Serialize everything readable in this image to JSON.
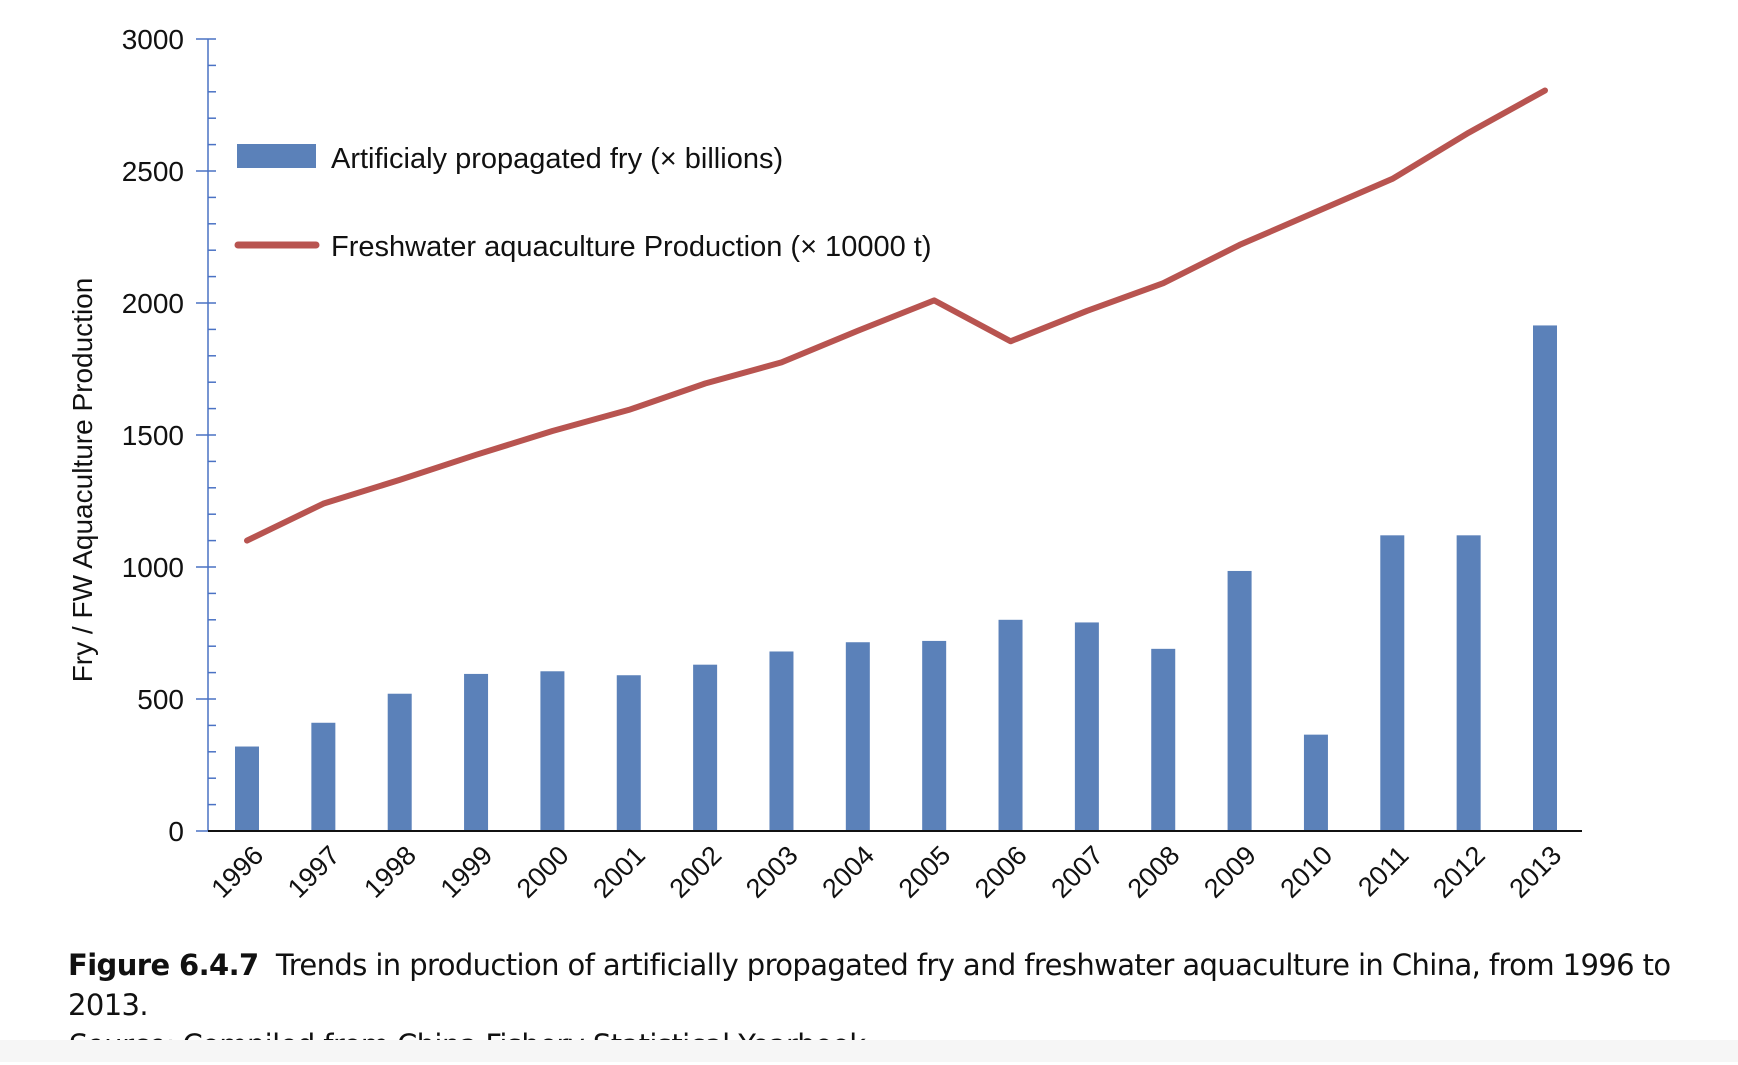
{
  "colors": {
    "bar": "#5b81b9",
    "line": "#b85450",
    "axis": "#4a72c4"
  },
  "chart_data": {
    "type": "bar+line",
    "ylabel": "Fry / FW Aquaculture Production",
    "ylim": [
      0,
      3000
    ],
    "yticks": [
      "0",
      "500",
      "1000",
      "1500",
      "2000",
      "2500",
      "3000"
    ],
    "categories": [
      "1996",
      "1997",
      "1998",
      "1999",
      "2000",
      "2001",
      "2002",
      "2003",
      "2004",
      "2005",
      "2006",
      "2007",
      "2008",
      "2009",
      "2010",
      "2011",
      "2012",
      "2013"
    ],
    "series": [
      {
        "name": "Artificialy propagated fry (× billions)",
        "type": "bar",
        "values": [
          320,
          410,
          520,
          595,
          605,
          590,
          630,
          680,
          715,
          720,
          800,
          790,
          690,
          985,
          365,
          1120,
          1120,
          1915
        ]
      },
      {
        "name": "Freshwater aquaculture Production (× 10000 t)",
        "type": "line",
        "values": [
          1100,
          1240,
          1330,
          1425,
          1515,
          1595,
          1695,
          1775,
          1895,
          2010,
          1855,
          1970,
          2075,
          2220,
          2345,
          2470,
          2645,
          2805
        ]
      }
    ],
    "legend": "top-left"
  },
  "caption": {
    "label": "Figure 6.4.7",
    "text": "Trends in production of artificially propagated fry and freshwater aquaculture in China, from 1996 to 2013.",
    "source_label": "Source:",
    "source_text": "Compiled from China Fishery Statistical Yearbook."
  }
}
